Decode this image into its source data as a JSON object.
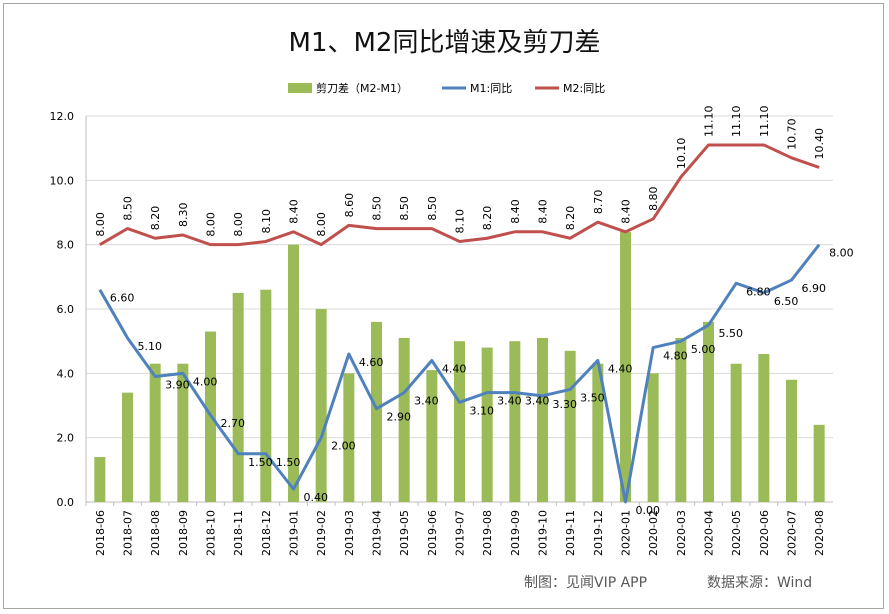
{
  "chart_data": {
    "type": "bar+line",
    "title": "M1、M2同比增速及剪刀差",
    "categories": [
      "2018-06",
      "2018-07",
      "2018-08",
      "2018-09",
      "2018-10",
      "2018-11",
      "2018-12",
      "2019-01",
      "2019-02",
      "2019-03",
      "2019-04",
      "2019-05",
      "2019-06",
      "2019-07",
      "2019-08",
      "2019-09",
      "2019-10",
      "2019-11",
      "2019-12",
      "2020-01",
      "2020-02",
      "2020-03",
      "2020-04",
      "2020-05",
      "2020-06",
      "2020-07",
      "2020-08"
    ],
    "ylim": [
      0,
      12
    ],
    "yticks": [
      "0.0",
      "2.0",
      "4.0",
      "6.0",
      "8.0",
      "10.0",
      "12.0"
    ],
    "grid": true,
    "legend_position": "top-center",
    "series": [
      {
        "name": "剪刀差（M2-M1）",
        "kind": "bar",
        "color": "#9bbb59",
        "values": [
          1.4,
          3.4,
          4.3,
          4.3,
          5.3,
          6.5,
          6.6,
          8.0,
          6.0,
          4.0,
          5.6,
          5.1,
          4.1,
          5.0,
          4.8,
          5.0,
          5.1,
          4.7,
          4.3,
          8.4,
          4.0,
          5.1,
          5.6,
          4.3,
          4.6,
          3.8,
          2.4
        ]
      },
      {
        "name": "M1:同比",
        "kind": "line",
        "color": "#4f81bd",
        "values": [
          6.6,
          5.1,
          3.9,
          4.0,
          2.7,
          1.5,
          1.5,
          0.4,
          2.0,
          4.6,
          2.9,
          3.4,
          4.4,
          3.1,
          3.4,
          3.4,
          3.3,
          3.5,
          4.4,
          0.0,
          4.8,
          5.0,
          5.5,
          6.8,
          6.5,
          6.9,
          8.0
        ],
        "labels": [
          "6.60",
          "5.10",
          "3.90",
          "4.00",
          "2.70",
          "1.50",
          "1.50",
          "0.40",
          "2.00",
          "4.60",
          "2.90",
          "3.40",
          "4.40",
          "3.10",
          "3.40",
          "3.40",
          "3.30",
          "3.50",
          "4.40",
          "0.00",
          "4.80",
          "5.00",
          "5.50",
          "6.80",
          "6.50",
          "6.90",
          "8.00"
        ]
      },
      {
        "name": "M2:同比",
        "kind": "line",
        "color": "#c0504d",
        "values": [
          8.0,
          8.5,
          8.2,
          8.3,
          8.0,
          8.0,
          8.1,
          8.4,
          8.0,
          8.6,
          8.5,
          8.5,
          8.5,
          8.1,
          8.2,
          8.4,
          8.4,
          8.2,
          8.7,
          8.4,
          8.8,
          10.1,
          11.1,
          11.1,
          11.1,
          10.7,
          10.4
        ],
        "labels": [
          "8.00",
          "8.50",
          "8.20",
          "8.30",
          "8.00",
          "8.00",
          "8.10",
          "8.40",
          "8.00",
          "8.60",
          "8.50",
          "8.50",
          "8.50",
          "8.10",
          "8.20",
          "8.40",
          "8.40",
          "8.20",
          "8.70",
          "8.40",
          "8.80",
          "10.10",
          "11.10",
          "11.10",
          "11.10",
          "10.70",
          "10.40"
        ]
      }
    ]
  },
  "footer": {
    "credit": "制图：见闻VIP APP",
    "source": "数据来源：Wind"
  }
}
